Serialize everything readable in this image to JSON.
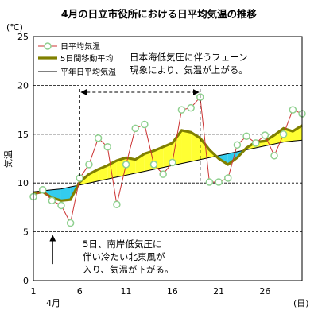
{
  "chart_data": {
    "type": "line",
    "title": "4月の日立市役所における日平均気温の推移",
    "y_unit": "(℃)",
    "ylabel": "気温",
    "x_unit": "(日)",
    "month_label": "4月",
    "xlim": [
      1,
      30
    ],
    "ylim": [
      0,
      25
    ],
    "y_ticks": [
      "0",
      "5",
      "10",
      "15",
      "20",
      "25"
    ],
    "x_ticks": [
      "1",
      "6",
      "11",
      "16",
      "21",
      "26"
    ],
    "grid": "horizontal dashed at 5, 10, 15, 20",
    "legend_position": "top-left",
    "x": [
      1,
      2,
      3,
      4,
      5,
      6,
      7,
      8,
      9,
      10,
      11,
      12,
      13,
      14,
      15,
      16,
      17,
      18,
      19,
      20,
      21,
      22,
      23,
      24,
      25,
      26,
      27,
      28,
      29,
      30
    ],
    "series": [
      {
        "name": "日平均気温",
        "color": "#8fd08f",
        "line_color": "#cc3333",
        "values": [
          8.6,
          9.3,
          8.2,
          7.7,
          5.9,
          10.5,
          11.9,
          14.6,
          13.7,
          7.8,
          11.9,
          15.6,
          16.0,
          11.9,
          10.9,
          12.1,
          17.5,
          17.7,
          18.8,
          10.1,
          10.1,
          10.5,
          13.9,
          14.8,
          14.1,
          14.9,
          12.8,
          15.0,
          17.5,
          17.1
        ]
      },
      {
        "name": "5日間移動平均",
        "color": "#808000",
        "values": [
          8.9,
          9.1,
          8.5,
          8.2,
          8.3,
          10.1,
          10.9,
          11.4,
          11.8,
          12.3,
          12.6,
          12.4,
          13.0,
          13.3,
          13.7,
          14.1,
          15.4,
          15.2,
          14.6,
          13.4,
          12.5,
          11.9,
          12.6,
          13.6,
          14.2,
          14.3,
          14.9,
          15.6,
          15.3,
          15.9
        ]
      },
      {
        "name": "平年日平均気温",
        "color": "#000000",
        "values": [
          9.1,
          9.2,
          9.3,
          9.4,
          9.6,
          9.8,
          10.0,
          10.2,
          10.4,
          10.6,
          10.8,
          11.0,
          11.2,
          11.4,
          11.6,
          11.8,
          12.0,
          12.2,
          12.4,
          12.6,
          12.8,
          13.0,
          13.2,
          13.4,
          13.6,
          13.8,
          14.0,
          14.2,
          14.3,
          14.4
        ]
      }
    ],
    "fill_above_color": "#ffff33",
    "fill_below_color": "#33ccee",
    "annotations": [
      {
        "lines": [
          "日本海低気圧に伴うフェーン",
          "現象により、気温が上がる。"
        ],
        "span_x": [
          6,
          19
        ],
        "arrow_y": 19.3
      },
      {
        "lines": [
          "5日、南岸低気圧に",
          "伴い冷たい北東風が",
          "入り、気温が下がる。"
        ],
        "arrow_x": 6,
        "arrow_from_y": 1.7,
        "arrow_to_y": 4.6
      }
    ]
  }
}
